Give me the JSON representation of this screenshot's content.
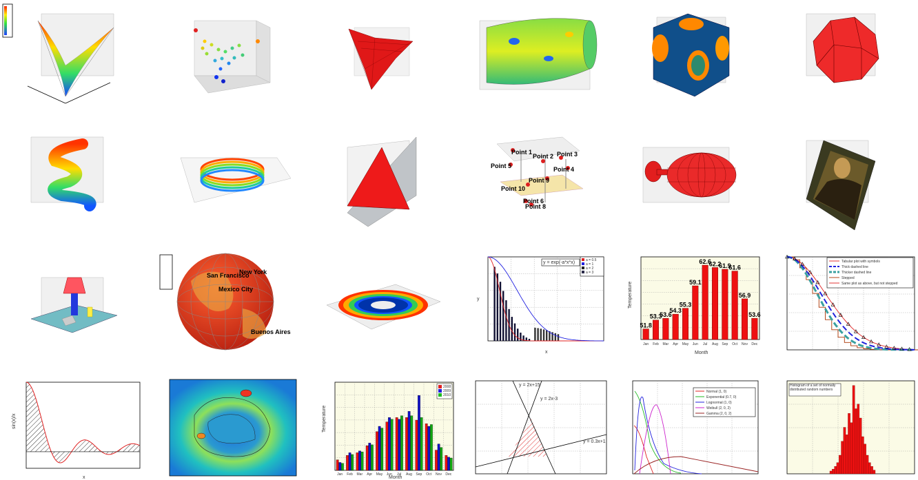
{
  "tiles": {
    "bubble": {
      "points": [
        "Point 1",
        "Point 2",
        "Point 3",
        "Point 4",
        "Point 5",
        "Point 8",
        "Point 9",
        "Point 10",
        "Point 6"
      ]
    },
    "globe": {
      "cities": [
        "San Francisco",
        "New York",
        "Mexico City",
        "Buenos Aires"
      ]
    },
    "gauss": {
      "formula": "y = exp(-a*x*x)",
      "xlabel": "x",
      "ylabel": "y",
      "legend": [
        "a = 0.5",
        "a = 1",
        "a = 2",
        "a = 3"
      ]
    },
    "bars_temp": {
      "xlabel": "Month",
      "ylabel": "Temperature",
      "values": [
        51.8,
        53.3,
        53.6,
        54.3,
        55.3,
        59.1,
        62.6,
        62.2,
        61.9,
        61.6,
        56.9,
        53.6
      ],
      "value_labels": [
        "51.8",
        "53.3",
        "53.6",
        "54.3",
        "55.3",
        "59.1",
        "62.6",
        "62.2",
        "61.9",
        "61.6",
        "56.9",
        "53.6"
      ],
      "categories": [
        "Jan",
        "Feb",
        "Mar",
        "Apr",
        "May",
        "Jun",
        "Jul",
        "Aug",
        "Sep",
        "Oct",
        "Nov",
        "Dec"
      ]
    },
    "lines_styles": {
      "legend": [
        "Tabular plot with symbols",
        "Thick dashed line",
        "Thicker dashed line",
        "Stepped",
        "Same plot as above, but not stepped"
      ]
    },
    "sinc": {
      "xlabel": "x",
      "ylabel": "sin(x)/x"
    },
    "grouped": {
      "xlabel": "Month",
      "ylabel": "Temperature",
      "categories": [
        "Jan",
        "Feb",
        "Mar",
        "Apr",
        "May",
        "Jun",
        "Jul",
        "Aug",
        "Sep",
        "Oct",
        "Nov",
        "Dec"
      ],
      "legend": [
        "2008",
        "2009",
        "2010"
      ]
    },
    "lines_eq": {
      "labels": [
        "y = 2x+15",
        "y = 2x-3",
        "y = 0.3x+1"
      ]
    },
    "distributions": {
      "legend": [
        "Normal (1, 0)",
        "Exponential (0.7, 0)",
        "Lognormal (1, 0)",
        "Weibull (2, 0, 2)",
        "Gamma (2, 0, 2)"
      ]
    },
    "histogram": {
      "title": "Histogram of a set of normally distributed random numbers"
    }
  }
}
